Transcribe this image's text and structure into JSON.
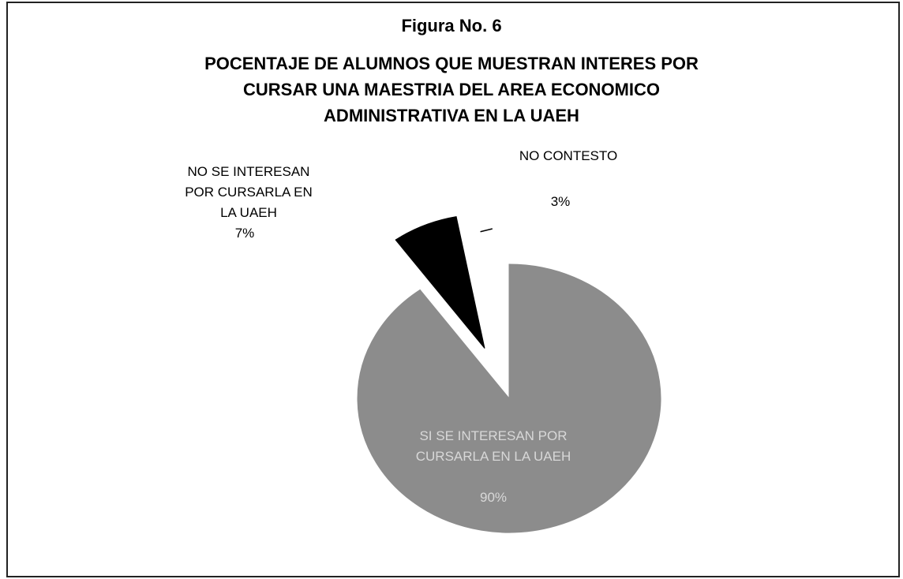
{
  "chart_data": {
    "type": "pie",
    "title": "Figura No. 6",
    "subtitle": [
      "POCENTAJE DE ALUMNOS QUE MUESTRAN INTERES POR",
      "CURSAR  UNA MAESTRIA DEL AREA ECONOMICO",
      "ADMINISTRATIVA EN LA UAEH"
    ],
    "categories": [
      "SI SE INTERESAN POR CURSARLA EN LA UAEH",
      "NO SE INTERESAN POR CURSARLA EN LA UAEH",
      "NO CONTESTO"
    ],
    "values": [
      90,
      7,
      3
    ],
    "value_labels": [
      "90%",
      "7%",
      "3%"
    ],
    "colors": [
      "#8c8c8c",
      "#000000",
      "#ffffff"
    ]
  }
}
